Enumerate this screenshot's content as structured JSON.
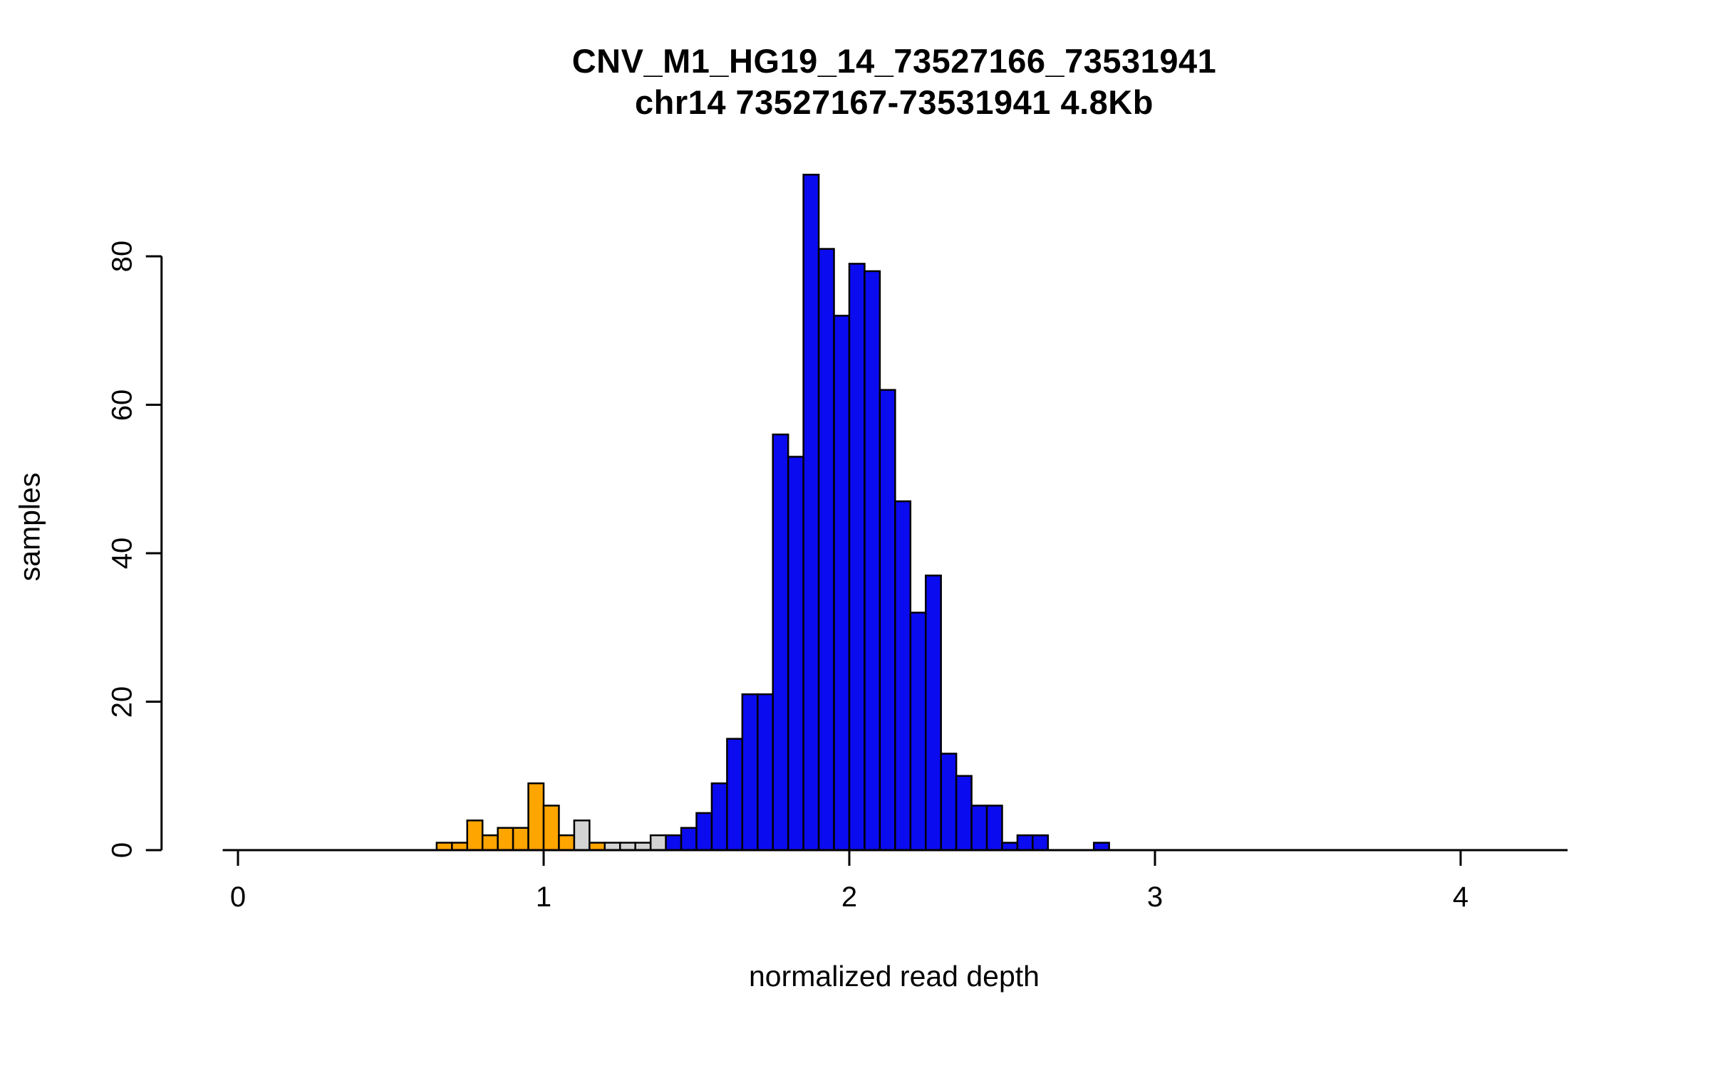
{
  "chart_data": {
    "type": "bar",
    "subtype": "histogram",
    "title": "CNV_M1_HG19_14_73527166_73531941",
    "subtitle": "chr14 73527167-73531941 4.8Kb",
    "xlabel": "normalized read depth",
    "ylabel": "samples",
    "xlim": [
      -0.05,
      4.35
    ],
    "ylim": [
      0,
      91
    ],
    "x_ticks": [
      0,
      1,
      2,
      3,
      4
    ],
    "y_ticks": [
      0,
      20,
      40,
      60,
      80
    ],
    "bin_width": 0.05,
    "grid": false,
    "legend": "none",
    "colors": {
      "blue": "#0b0bf0",
      "orange": "#ffa500",
      "gray": "#d3d3d3",
      "axis": "#000000",
      "background": "#ffffff"
    },
    "bins": [
      {
        "x": 0.65,
        "count": 1,
        "color": "orange"
      },
      {
        "x": 0.7,
        "count": 1,
        "color": "orange"
      },
      {
        "x": 0.75,
        "count": 4,
        "color": "orange"
      },
      {
        "x": 0.8,
        "count": 2,
        "color": "orange"
      },
      {
        "x": 0.85,
        "count": 3,
        "color": "orange"
      },
      {
        "x": 0.9,
        "count": 3,
        "color": "orange"
      },
      {
        "x": 0.95,
        "count": 9,
        "color": "orange"
      },
      {
        "x": 1.0,
        "count": 6,
        "color": "orange"
      },
      {
        "x": 1.05,
        "count": 2,
        "color": "orange"
      },
      {
        "x": 1.1,
        "count": 4,
        "color": "gray"
      },
      {
        "x": 1.15,
        "count": 1,
        "color": "orange"
      },
      {
        "x": 1.2,
        "count": 1,
        "color": "gray"
      },
      {
        "x": 1.25,
        "count": 1,
        "color": "gray"
      },
      {
        "x": 1.3,
        "count": 1,
        "color": "gray"
      },
      {
        "x": 1.35,
        "count": 2,
        "color": "gray"
      },
      {
        "x": 1.4,
        "count": 2,
        "color": "blue"
      },
      {
        "x": 1.45,
        "count": 3,
        "color": "blue"
      },
      {
        "x": 1.5,
        "count": 5,
        "color": "blue"
      },
      {
        "x": 1.55,
        "count": 9,
        "color": "blue"
      },
      {
        "x": 1.6,
        "count": 15,
        "color": "blue"
      },
      {
        "x": 1.65,
        "count": 21,
        "color": "blue"
      },
      {
        "x": 1.7,
        "count": 21,
        "color": "blue"
      },
      {
        "x": 1.75,
        "count": 56,
        "color": "blue"
      },
      {
        "x": 1.8,
        "count": 53,
        "color": "blue"
      },
      {
        "x": 1.85,
        "count": 91,
        "color": "blue"
      },
      {
        "x": 1.9,
        "count": 81,
        "color": "blue"
      },
      {
        "x": 1.95,
        "count": 72,
        "color": "blue"
      },
      {
        "x": 2.0,
        "count": 79,
        "color": "blue"
      },
      {
        "x": 2.05,
        "count": 78,
        "color": "blue"
      },
      {
        "x": 2.1,
        "count": 62,
        "color": "blue"
      },
      {
        "x": 2.15,
        "count": 47,
        "color": "blue"
      },
      {
        "x": 2.2,
        "count": 32,
        "color": "blue"
      },
      {
        "x": 2.25,
        "count": 37,
        "color": "blue"
      },
      {
        "x": 2.3,
        "count": 13,
        "color": "blue"
      },
      {
        "x": 2.35,
        "count": 10,
        "color": "blue"
      },
      {
        "x": 2.4,
        "count": 6,
        "color": "blue"
      },
      {
        "x": 2.45,
        "count": 6,
        "color": "blue"
      },
      {
        "x": 2.5,
        "count": 1,
        "color": "blue"
      },
      {
        "x": 2.55,
        "count": 2,
        "color": "blue"
      },
      {
        "x": 2.6,
        "count": 2,
        "color": "blue"
      },
      {
        "x": 2.8,
        "count": 1,
        "color": "blue"
      }
    ]
  }
}
